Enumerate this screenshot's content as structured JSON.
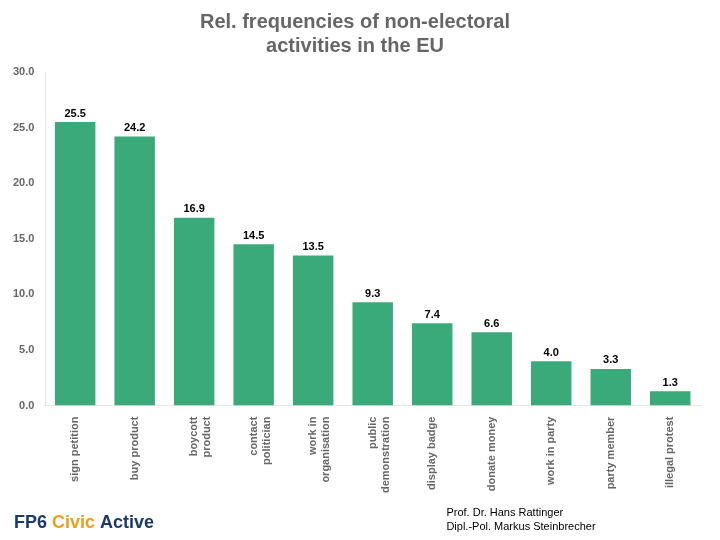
{
  "chart_data": {
    "type": "bar",
    "title": [
      "Rel. frequencies of non-electoral",
      "activities in the EU"
    ],
    "categories": [
      "sign petition",
      "buy product",
      "boycott\nproduct",
      "contact\npolitician",
      "work in\norganisation",
      "public\ndemonstration",
      "display badge",
      "donate money",
      "work in party",
      "party member",
      "illegal protest"
    ],
    "values": [
      25.5,
      24.2,
      16.9,
      14.5,
      13.5,
      9.3,
      7.4,
      6.6,
      4.0,
      3.3,
      1.3
    ],
    "value_labels": [
      "25.5",
      "24.2",
      "16.9",
      "14.5",
      "13.5",
      "9.3",
      "7.4",
      "6.6",
      "4.0",
      "3.3",
      "1.3"
    ],
    "data_labels": true,
    "color": "#3aaa7a",
    "ylim": [
      0,
      30
    ],
    "yticks": [
      {
        "value": 0,
        "label": "0.0"
      },
      {
        "value": 5,
        "label": "5.0"
      },
      {
        "value": 10,
        "label": "10.0"
      },
      {
        "value": 15,
        "label": "15.0"
      },
      {
        "value": 20,
        "label": "20.0"
      },
      {
        "value": 25,
        "label": "25.0"
      },
      {
        "value": 30,
        "label": "30.0"
      }
    ],
    "grid": false,
    "annotations": [
      {
        "text": "FP6",
        "color": "#1a3a6b"
      },
      {
        "text": "Civic",
        "color": "#e8a020"
      },
      {
        "text": "Active",
        "color": "#1a3a6b"
      },
      {
        "text": "Prof. Dr. Hans Rattinger"
      },
      {
        "text": "Dipl.-Pol. Markus Steinbrecher"
      }
    ]
  }
}
